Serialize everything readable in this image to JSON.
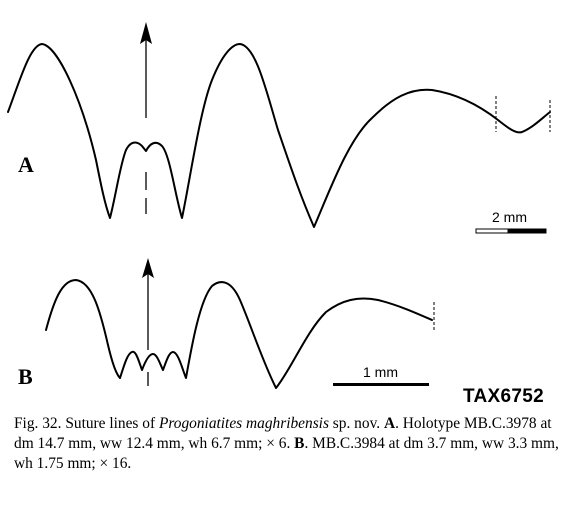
{
  "panels": {
    "a": {
      "label": "A",
      "scale_label": "2 mm"
    },
    "b": {
      "label": "B",
      "scale_label": "1 mm"
    }
  },
  "watermark": "TAX6752",
  "caption": {
    "fig": "Fig. 32.",
    "t1": " Suture lines of ",
    "species": "Progoniatites maghribensis",
    "t2": " sp. nov. ",
    "a_label": "A",
    "t3": ". Holotype MB.C.3978 at dm 14.7 mm, ww 12.4 mm, wh 6.7 mm; × 6. ",
    "b_label": "B",
    "t4": ". MB.C.3984 at dm 3.7 mm, ww 3.3 mm, wh 1.75 mm; × 16."
  }
}
